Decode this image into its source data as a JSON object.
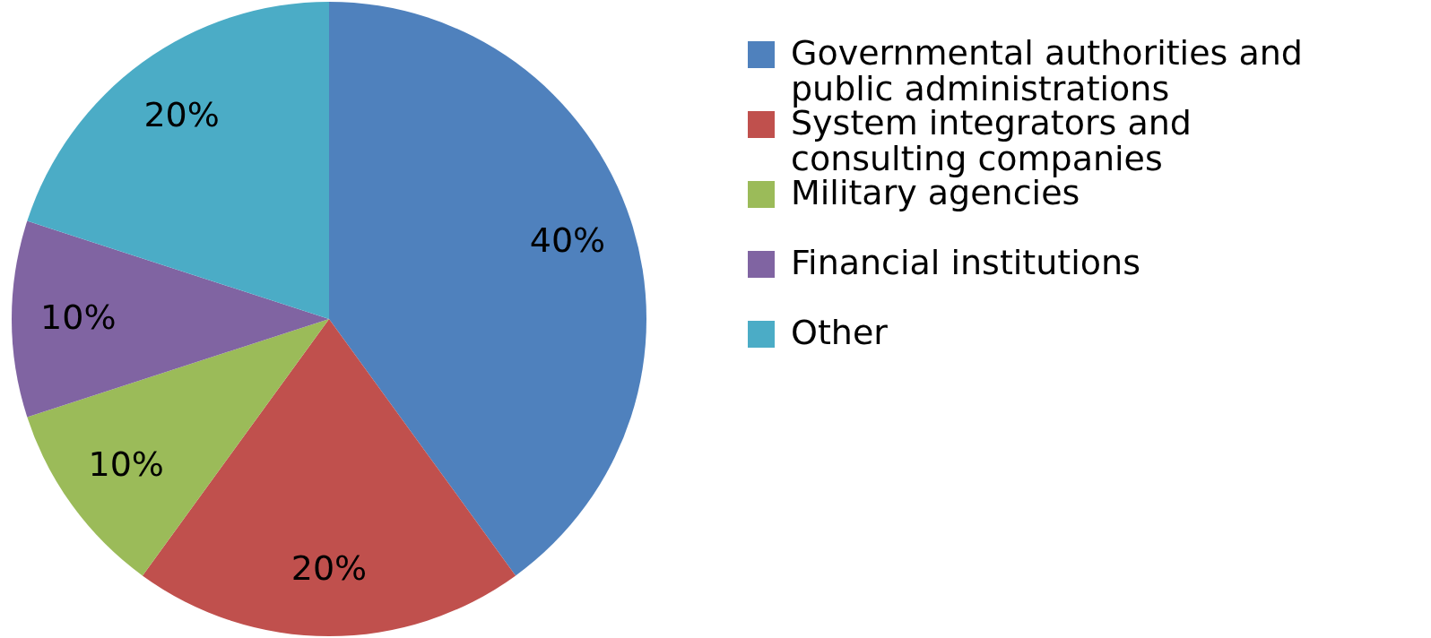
{
  "chart_data": {
    "type": "pie",
    "categories": [
      "Governmental authorities and public administrations",
      "System integrators and consulting companies",
      "Military agencies",
      "Financial institutions",
      "Other"
    ],
    "values": [
      40,
      20,
      10,
      10,
      20
    ],
    "value_labels": [
      "40%",
      "20%",
      "10%",
      "10%",
      "20%"
    ],
    "colors": [
      "#4f81bd",
      "#c0504d",
      "#9bbb59",
      "#8064a2",
      "#4bacc6"
    ],
    "legend": "right"
  }
}
